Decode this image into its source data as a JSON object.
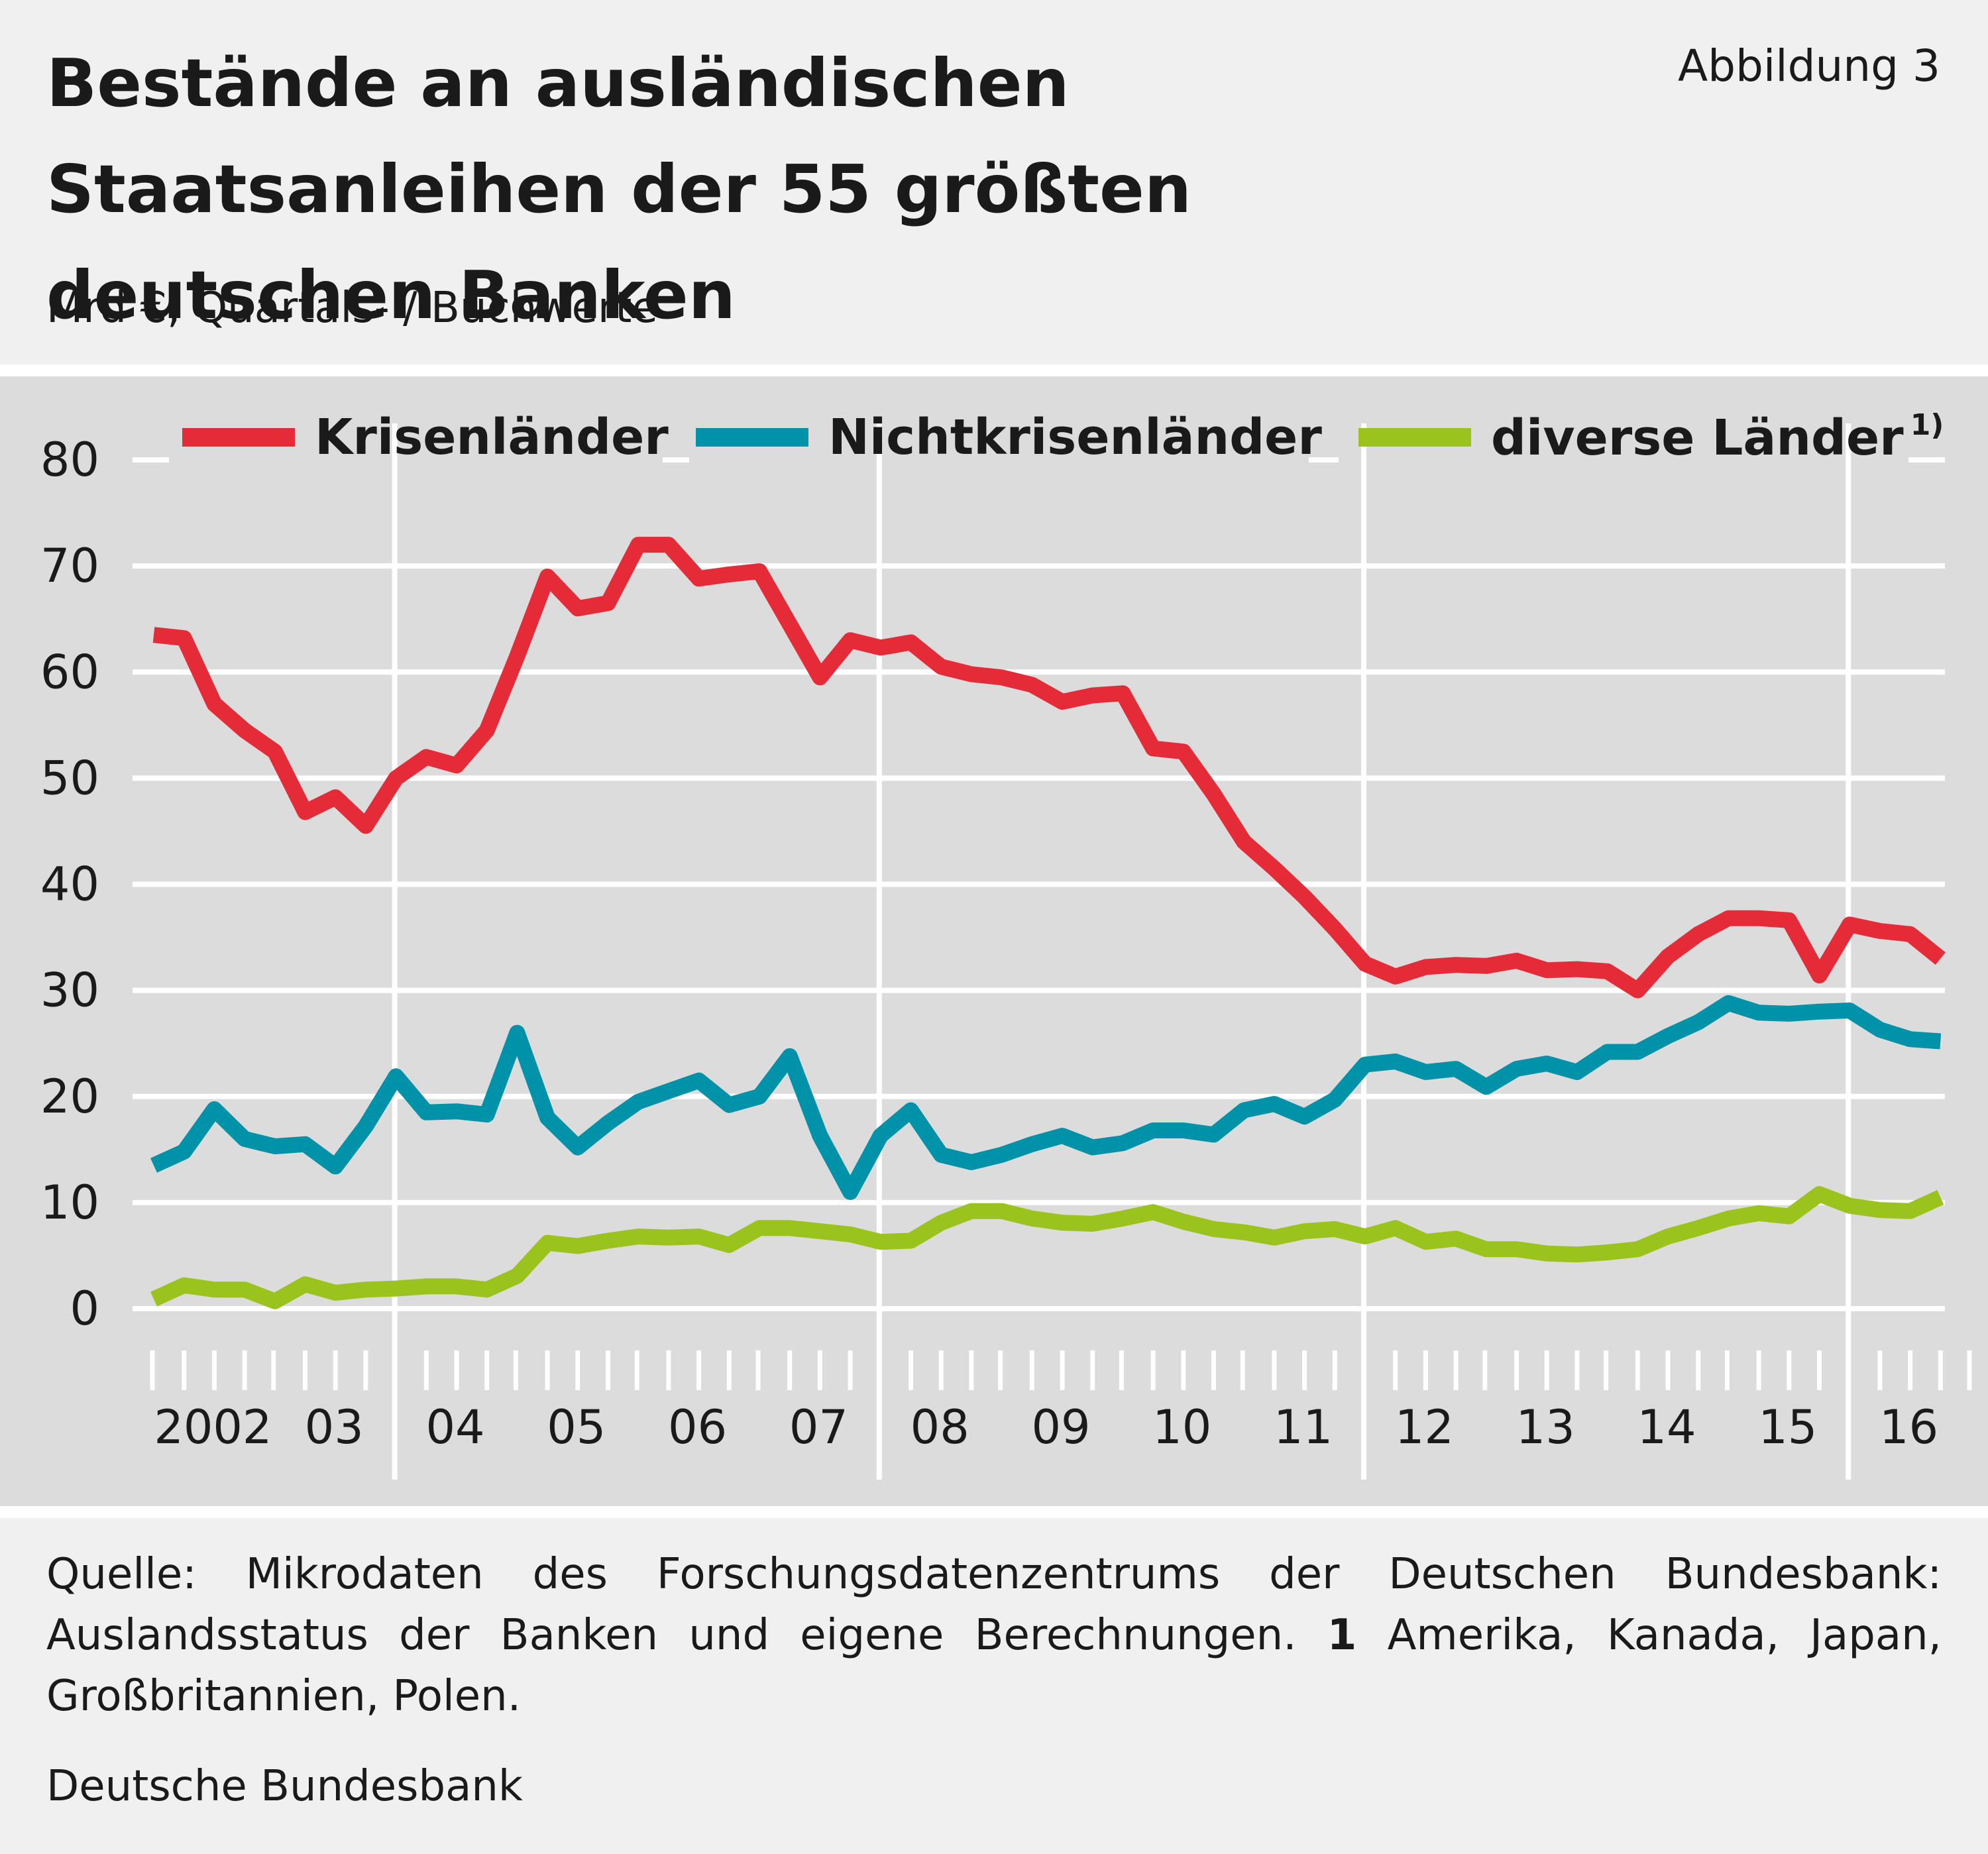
{
  "header": {
    "title": "Bestände an ausländischen Staatsanleihen der 55 größten deutschen Banken",
    "figure_number": "Abbildung 3",
    "subtitle": "Mrd €, Quartals- / Buchwerte"
  },
  "footer": {
    "source_text": "Quelle: Mikrodaten des Forschungsdatenzentrums der Deutschen Bundesbank: Auslandsstatus der Banken und eigene Berechnungen.",
    "footnote_marker": "1",
    "footnote_text": "Amerika, Kanada, Japan, Großbritannien, Polen.",
    "credit": "Deutsche Bundesbank"
  },
  "chart_data": {
    "type": "line",
    "title": "",
    "xlabel": "",
    "ylabel": "",
    "ylim": [
      0,
      80
    ],
    "yticks": [
      0,
      10,
      20,
      30,
      40,
      50,
      60,
      70,
      80
    ],
    "grid": true,
    "legend_position": "top",
    "x_year_labels": [
      "2002",
      "03",
      "04",
      "05",
      "06",
      "07",
      "08",
      "09",
      "10",
      "11",
      "12",
      "13",
      "14",
      "15",
      "16"
    ],
    "x": [
      "2002Q1",
      "2002Q2",
      "2002Q3",
      "2002Q4",
      "2003Q1",
      "2003Q2",
      "2003Q3",
      "2003Q4",
      "2004Q1",
      "2004Q2",
      "2004Q3",
      "2004Q4",
      "2005Q1",
      "2005Q2",
      "2005Q3",
      "2005Q4",
      "2006Q1",
      "2006Q2",
      "2006Q3",
      "2006Q4",
      "2007Q1",
      "2007Q2",
      "2007Q3",
      "2007Q4",
      "2008Q1",
      "2008Q2",
      "2008Q3",
      "2008Q4",
      "2009Q1",
      "2009Q2",
      "2009Q3",
      "2009Q4",
      "2010Q1",
      "2010Q2",
      "2010Q3",
      "2010Q4",
      "2011Q1",
      "2011Q2",
      "2011Q3",
      "2011Q4",
      "2012Q1",
      "2012Q2",
      "2012Q3",
      "2012Q4",
      "2013Q1",
      "2013Q2",
      "2013Q3",
      "2013Q4",
      "2014Q1",
      "2014Q2",
      "2014Q3",
      "2014Q4",
      "2015Q1",
      "2015Q2",
      "2015Q3",
      "2015Q4",
      "2016Q1",
      "2016Q2",
      "2016Q3",
      "2016Q4"
    ],
    "series": [
      {
        "name": "Krisenländer",
        "color": "#e52b38",
        "values": [
          63.5,
          63.2,
          57,
          54.5,
          52.5,
          46.8,
          48.2,
          45.5,
          50,
          52,
          51.2,
          54.5,
          61.5,
          69,
          66,
          66.5,
          72,
          72,
          68.8,
          69.2,
          69.5,
          64.5,
          59.5,
          63,
          62.3,
          62.8,
          60.5,
          59.8,
          59.5,
          58.8,
          57.2,
          57.8,
          58,
          52.8,
          52.5,
          48.5,
          44,
          41.5,
          38.8,
          35.8,
          32.5,
          31.3,
          32.2,
          32.4,
          32.3,
          32.8,
          31.9,
          32,
          31.8,
          30,
          33.2,
          35.3,
          36.8,
          36.8,
          36.6,
          31.4,
          36.2,
          35.6,
          35.3,
          33
        ]
      },
      {
        "name": "Nichtkrisenländer",
        "color": "#0092a8",
        "values": [
          13.5,
          14.8,
          18.8,
          16,
          15.3,
          15.5,
          13.4,
          17.2,
          21.9,
          18.5,
          18.6,
          18.3,
          26,
          18,
          15.2,
          17.5,
          19.5,
          20.5,
          21.5,
          19.2,
          20,
          23.8,
          16.3,
          11,
          16.3,
          18.7,
          14.5,
          13.8,
          14.5,
          15.5,
          16.3,
          15.2,
          15.6,
          16.8,
          16.8,
          16.4,
          18.7,
          19.3,
          18.1,
          19.7,
          23,
          23.3,
          22.3,
          22.6,
          20.9,
          22.6,
          23.1,
          22.3,
          24.2,
          24.2,
          25.7,
          27,
          28.8,
          27.9,
          27.8,
          28,
          28.1,
          26.3,
          25.4,
          25.2
        ]
      },
      {
        "name": "diverse Länder",
        "footnote_marker": "1)",
        "color": "#9ac31c",
        "values": [
          0.9,
          2.2,
          1.8,
          1.8,
          0.7,
          2.3,
          1.5,
          1.8,
          1.9,
          2.1,
          2.1,
          1.8,
          3.1,
          6.2,
          5.9,
          6.4,
          6.8,
          6.7,
          6.8,
          6,
          7.6,
          7.6,
          7.3,
          7,
          6.3,
          6.4,
          8.1,
          9.2,
          9.2,
          8.5,
          8.1,
          8,
          8.5,
          9.1,
          8.2,
          7.5,
          7.2,
          6.7,
          7.3,
          7.5,
          6.8,
          7.6,
          6.3,
          6.6,
          5.6,
          5.6,
          5.2,
          5.1,
          5.3,
          5.6,
          6.8,
          7.6,
          8.5,
          9,
          8.7,
          10.8,
          9.7,
          9.3,
          9.2,
          10.5
        ]
      }
    ]
  }
}
